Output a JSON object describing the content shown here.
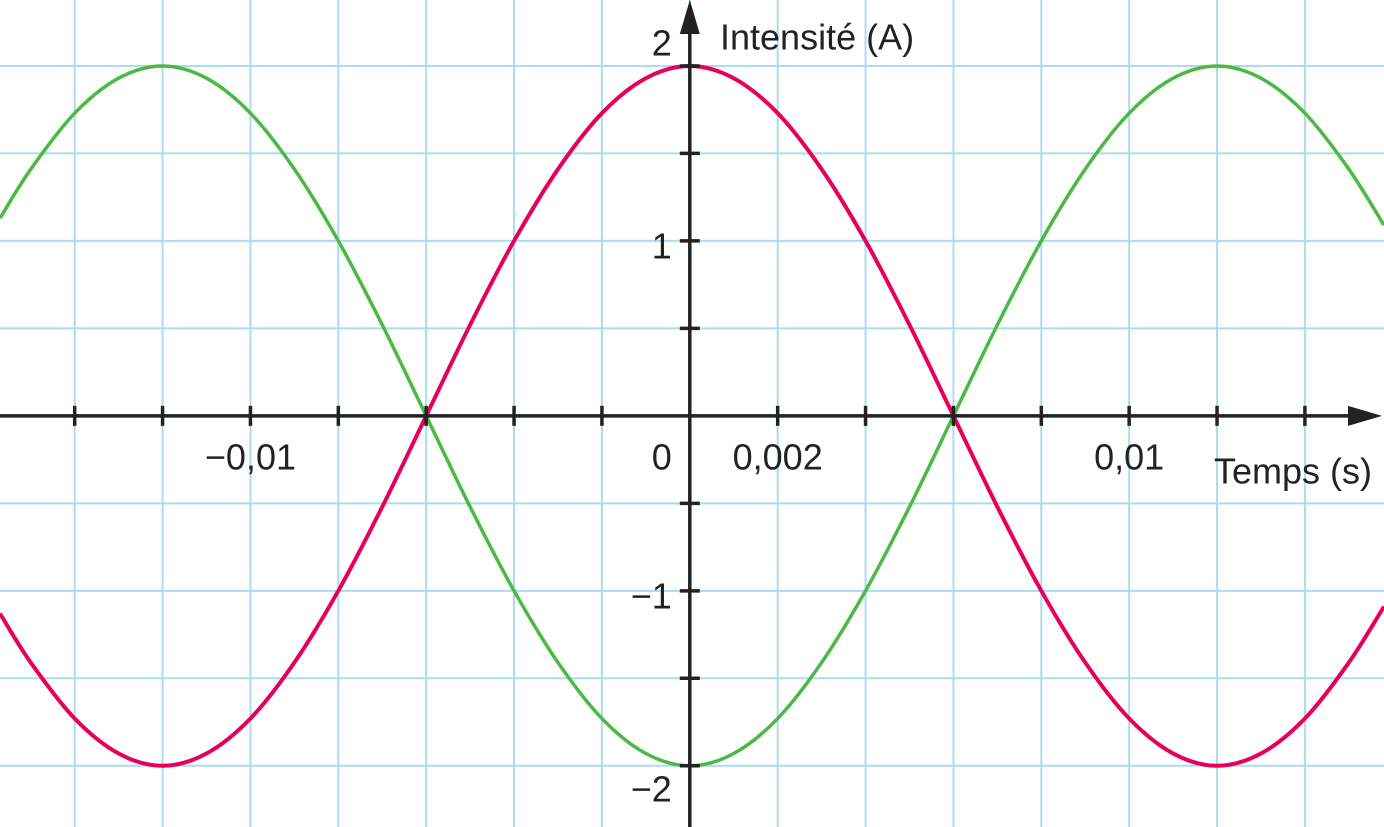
{
  "chart_data": {
    "type": "line",
    "x_label": "Temps (s)",
    "y_label": "Intensité (A)",
    "x": [
      -0.0157,
      -0.015,
      -0.014,
      -0.013,
      -0.012,
      -0.011,
      -0.01,
      -0.009,
      -0.008,
      -0.007,
      -0.006,
      -0.005,
      -0.004,
      -0.003,
      -0.002,
      -0.001,
      0,
      0.001,
      0.002,
      0.003,
      0.004,
      0.005,
      0.006,
      0.007,
      0.008,
      0.009,
      0.01,
      0.011,
      0.012,
      0.013,
      0.014,
      0.015,
      0.0158
    ],
    "series": [
      {
        "color": "#e6005c",
        "values": [
          -1.13,
          -1.41,
          -1.73,
          -1.93,
          -2,
          -1.93,
          -1.73,
          -1.41,
          -1,
          -0.52,
          0,
          0.52,
          1,
          1.41,
          1.73,
          1.93,
          2,
          1.93,
          1.73,
          1.41,
          1,
          0.52,
          0,
          -0.52,
          -1,
          -1.41,
          -1.73,
          -1.93,
          -2,
          -1.93,
          -1.73,
          -1.41,
          -1.09
        ]
      },
      {
        "color": "#4cb944",
        "values": [
          1.13,
          1.41,
          1.73,
          1.93,
          2,
          1.93,
          1.73,
          1.41,
          1,
          0.52,
          0,
          -0.52,
          -1,
          -1.41,
          -1.73,
          -1.93,
          -2,
          -1.93,
          -1.73,
          -1.41,
          -1,
          -0.52,
          0,
          0.52,
          1,
          1.41,
          1.73,
          1.93,
          2,
          1.93,
          1.73,
          1.41,
          1.09
        ]
      }
    ],
    "xlim": [
      -0.0157,
      0.0158
    ],
    "ylim": [
      -2.35,
      2.377
    ],
    "xticks": [
      {
        "value": -0.01,
        "label": "−0,01"
      },
      0,
      {
        "value": 0.002,
        "label": "0,002"
      },
      {
        "value": 0.01,
        "label": "0,01"
      }
    ],
    "yticks": [
      2,
      1,
      {
        "value": -1,
        "label": "−1"
      },
      {
        "value": -2,
        "label": "−2"
      }
    ],
    "x_minor_ticks": [
      -0.014,
      -0.012,
      -0.008,
      -0.006,
      -0.004,
      -0.002,
      0.004,
      0.006,
      0.008,
      0.012,
      0.014
    ],
    "y_minor_ticks": [
      1.5,
      0.5,
      -0.5,
      -1.5
    ],
    "grid": true,
    "grid_color": "#a9dcf2",
    "axis_color": "#222222"
  }
}
